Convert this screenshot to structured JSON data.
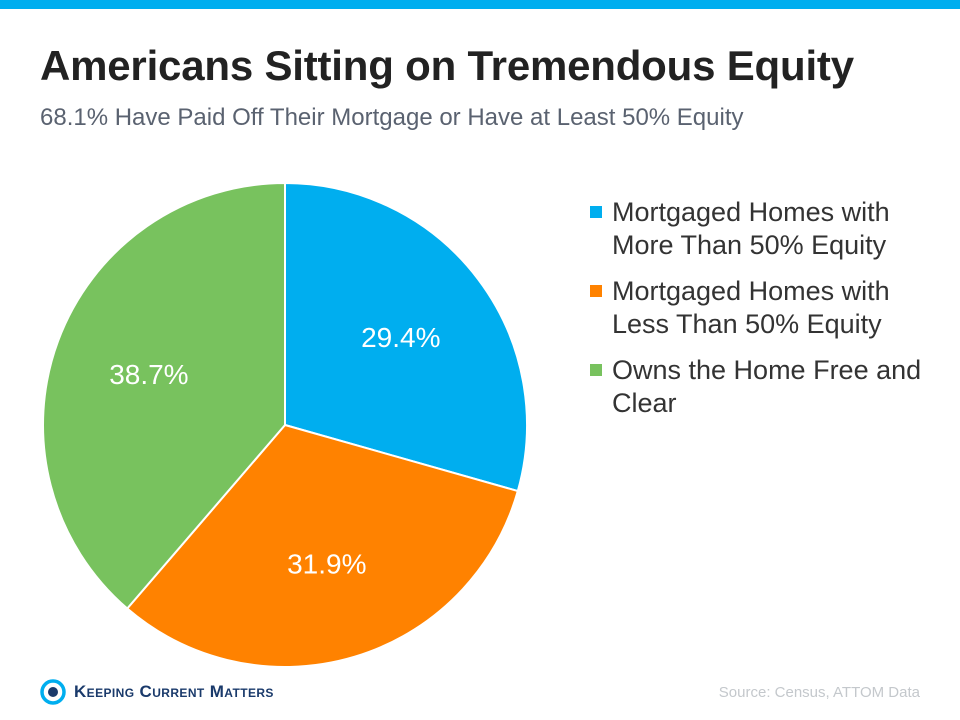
{
  "title": "Americans Sitting on Tremendous Equity",
  "subtitle": "68.1% Have Paid Off Their Mortgage or Have at Least 50% Equity",
  "source": "Source: Census, ATTOM Data",
  "logo_text": "Keeping Current Matters",
  "colors": {
    "top_bar": "#00aeef"
  },
  "chart_data": {
    "type": "pie",
    "title": "Americans Sitting on Tremendous Equity",
    "legend_position": "right",
    "slices": [
      {
        "name": "Mortgaged Homes with More Than 50% Equity",
        "value": 29.4,
        "label": "29.4%",
        "color": "#00aeef"
      },
      {
        "name": "Mortgaged Homes with Less Than 50% Equity",
        "value": 31.9,
        "label": "31.9%",
        "color": "#ff8200"
      },
      {
        "name": "Owns the Home Free and Clear",
        "value": 38.7,
        "label": "38.7%",
        "color": "#78c25e"
      }
    ]
  }
}
